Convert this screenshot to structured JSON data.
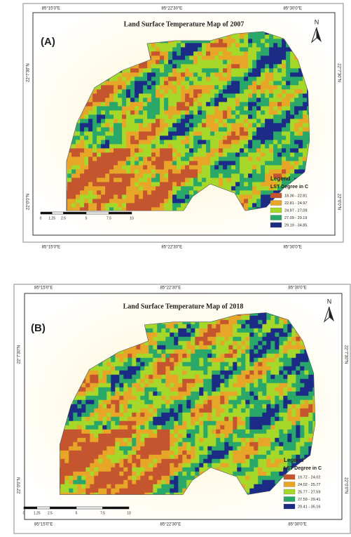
{
  "panels": [
    {
      "label": "(A)",
      "title": "Land Surface Temperature Map of 2007",
      "top_labels": [
        "85°15'0\"E",
        "85°22'30\"E",
        "85°30'0\"E"
      ],
      "bottom_labels": [
        "85°15'0\"E",
        "85°22'30\"E",
        "85°30'0\"E"
      ],
      "left_labels": [
        "22°7'30\"N",
        "22°0'0\"N"
      ],
      "right_labels": [
        "22°7'30\"N",
        "22°0'0\"N"
      ],
      "north": "N",
      "legend": {
        "title": "Legend",
        "subtitle": "LST Degree in C",
        "items": [
          {
            "label": "18.36 - 22.81",
            "color": "#c4552e"
          },
          {
            "label": "22.81 - 24.97",
            "color": "#e8a628"
          },
          {
            "label": "24.97 - 27.09",
            "color": "#a6d82a"
          },
          {
            "label": "27.09 - 29.19",
            "color": "#2aa86a"
          },
          {
            "label": "29.19 - 34.85",
            "color": "#1c2c86"
          }
        ]
      },
      "scale_labels": [
        "0",
        "1.25",
        "2.5",
        "5",
        "7.5",
        "10"
      ]
    },
    {
      "label": "(B)",
      "title": "Land Surface Temperature Map of 2018",
      "top_labels": [
        "85°15'0\"E",
        "85°22'30\"E",
        "85°30'0\"E"
      ],
      "bottom_labels": [
        "85°15'0\"E",
        "85°22'30\"E",
        "85°30'0\"E"
      ],
      "left_labels": [
        "22°7'30\"N",
        "22°0'0\"N"
      ],
      "right_labels": [
        "22°7'30\"N",
        "22°0'0\"N"
      ],
      "north": "N",
      "legend": {
        "title": "Legend",
        "subtitle": "LST Degree in C",
        "items": [
          {
            "label": "19.72 - 24.02",
            "color": "#c4552e"
          },
          {
            "label": "24.02 - 25.77",
            "color": "#e8a628"
          },
          {
            "label": "25.77 - 27.59",
            "color": "#a6d82a"
          },
          {
            "label": "27.59 - 29.41",
            "color": "#2aa86a"
          },
          {
            "label": "29.41 - 35.16",
            "color": "#1c2c86"
          }
        ]
      },
      "scale_labels": [
        "0",
        "1.25",
        "2.5",
        "5",
        "7.5",
        "10"
      ]
    }
  ]
}
